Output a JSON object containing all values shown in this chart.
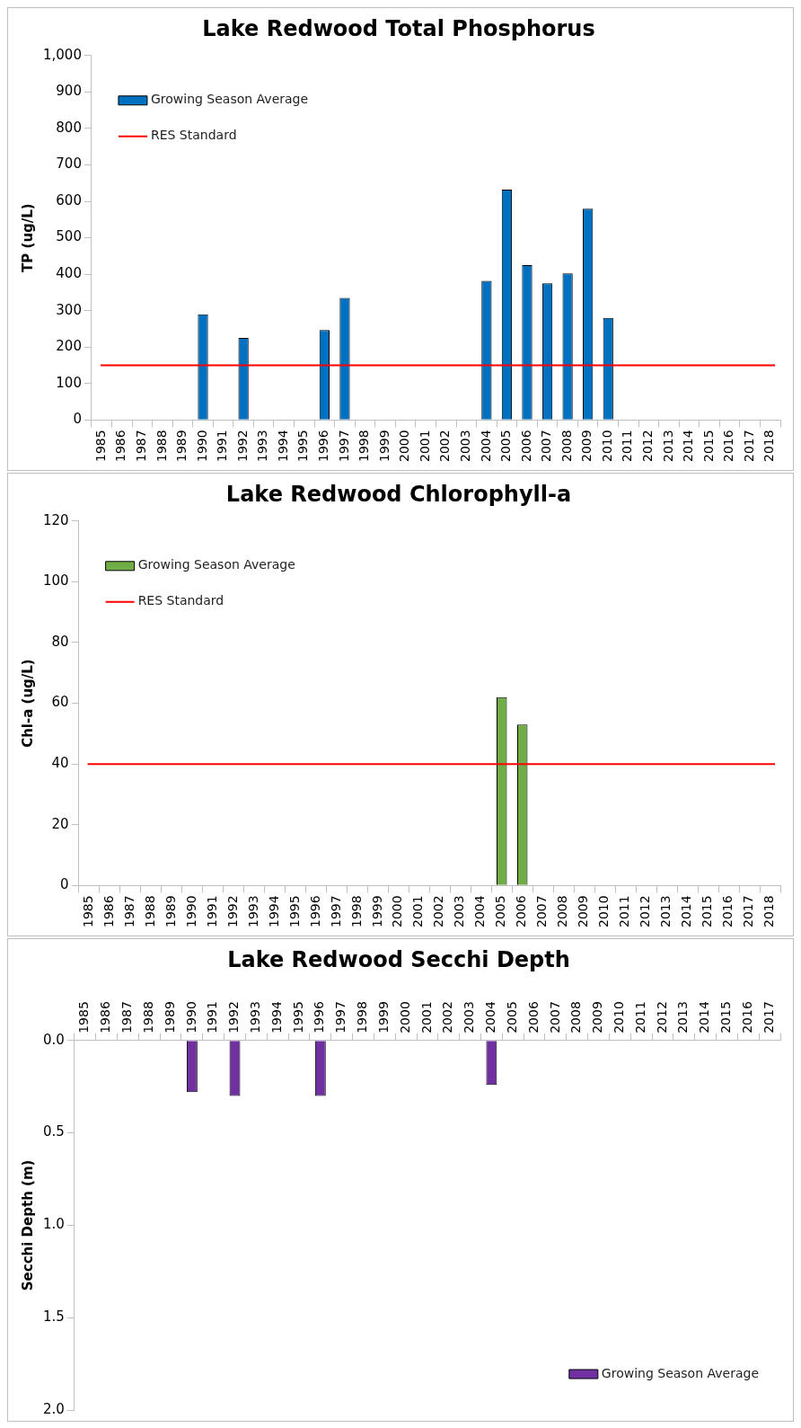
{
  "chart_data": [
    {
      "type": "bar",
      "title": "Lake Redwood Total Phosphorus",
      "ylabel": "TP (ug/L)",
      "categories": [
        "1985",
        "1986",
        "1987",
        "1988",
        "1989",
        "1990",
        "1991",
        "1992",
        "1993",
        "1994",
        "1995",
        "1996",
        "1997",
        "1998",
        "1999",
        "2000",
        "2001",
        "2002",
        "2003",
        "2004",
        "2005",
        "2006",
        "2007",
        "2008",
        "2009",
        "2010",
        "2011",
        "2012",
        "2013",
        "2014",
        "2015",
        "2016",
        "2017",
        "2018"
      ],
      "series": [
        {
          "name": "Growing Season Average",
          "color": "#0070c0",
          "values": [
            null,
            null,
            null,
            null,
            null,
            290,
            null,
            225,
            null,
            null,
            null,
            247,
            335,
            null,
            null,
            null,
            null,
            null,
            null,
            382,
            632,
            425,
            375,
            402,
            580,
            280,
            null,
            null,
            null,
            null,
            null,
            null,
            null,
            null
          ]
        }
      ],
      "ref_lines": [
        {
          "axis": "y",
          "value": 150,
          "label": "RES Standard",
          "color": "#ff0000"
        }
      ],
      "ylim": [
        0,
        1000
      ],
      "yticks": [
        0,
        100,
        200,
        300,
        400,
        500,
        600,
        700,
        800,
        900,
        {
          "value": 1000,
          "label": "1,000"
        }
      ],
      "legend": "top left",
      "grid": false
    },
    {
      "type": "bar",
      "title": "Lake Redwood Chlorophyll-a",
      "ylabel": "Chl-a (ug/L)",
      "categories": [
        "1985",
        "1986",
        "1987",
        "1988",
        "1989",
        "1990",
        "1991",
        "1992",
        "1993",
        "1994",
        "1995",
        "1996",
        "1997",
        "1998",
        "1999",
        "2000",
        "2001",
        "2002",
        "2003",
        "2004",
        "2005",
        "2006",
        "2007",
        "2008",
        "2009",
        "2010",
        "2011",
        "2012",
        "2013",
        "2014",
        "2015",
        "2016",
        "2017",
        "2018"
      ],
      "series": [
        {
          "name": "Growing Season Average",
          "color": "#70ad47",
          "values": [
            null,
            null,
            null,
            null,
            null,
            null,
            null,
            null,
            null,
            null,
            null,
            null,
            null,
            null,
            null,
            null,
            null,
            null,
            null,
            null,
            62,
            53,
            null,
            null,
            null,
            null,
            null,
            null,
            null,
            null,
            null,
            null,
            null,
            null
          ]
        }
      ],
      "ref_lines": [
        {
          "axis": "y",
          "value": 40,
          "label": "RES Standard",
          "color": "#ff0000"
        }
      ],
      "ylim": [
        0,
        120
      ],
      "yticks": [
        0,
        20,
        40,
        60,
        80,
        100,
        120
      ],
      "legend": "top left",
      "grid": false
    },
    {
      "type": "bar",
      "title": "Lake Redwood Secchi Depth",
      "ylabel": "Secchi Depth (m)",
      "categories": [
        "1985",
        "1986",
        "1987",
        "1988",
        "1989",
        "1990",
        "1991",
        "1992",
        "1993",
        "1994",
        "1995",
        "1996",
        "1997",
        "1998",
        "1999",
        "2000",
        "2001",
        "2002",
        "2003",
        "2004",
        "2005",
        "2006",
        "2007",
        "2008",
        "2009",
        "2010",
        "2011",
        "2012",
        "2013",
        "2014",
        "2015",
        "2016",
        "2017"
      ],
      "series": [
        {
          "name": "Growing Season Average",
          "color": "#7030a0",
          "values": [
            null,
            null,
            null,
            null,
            null,
            0.28,
            null,
            0.3,
            null,
            null,
            null,
            0.3,
            null,
            null,
            null,
            null,
            null,
            null,
            null,
            0.24,
            null,
            null,
            null,
            null,
            null,
            null,
            null,
            null,
            null,
            null,
            null,
            null,
            null
          ]
        }
      ],
      "ylim": [
        2.0,
        0.0
      ],
      "yticks": [
        {
          "value": 0,
          "label": "0.0"
        },
        {
          "value": 0.5,
          "label": "0.5"
        },
        {
          "value": 1,
          "label": "1.0"
        },
        {
          "value": 1.5,
          "label": "1.5"
        },
        {
          "value": 2,
          "label": "2.0"
        }
      ],
      "legend": "bottom right",
      "grid": false
    }
  ]
}
